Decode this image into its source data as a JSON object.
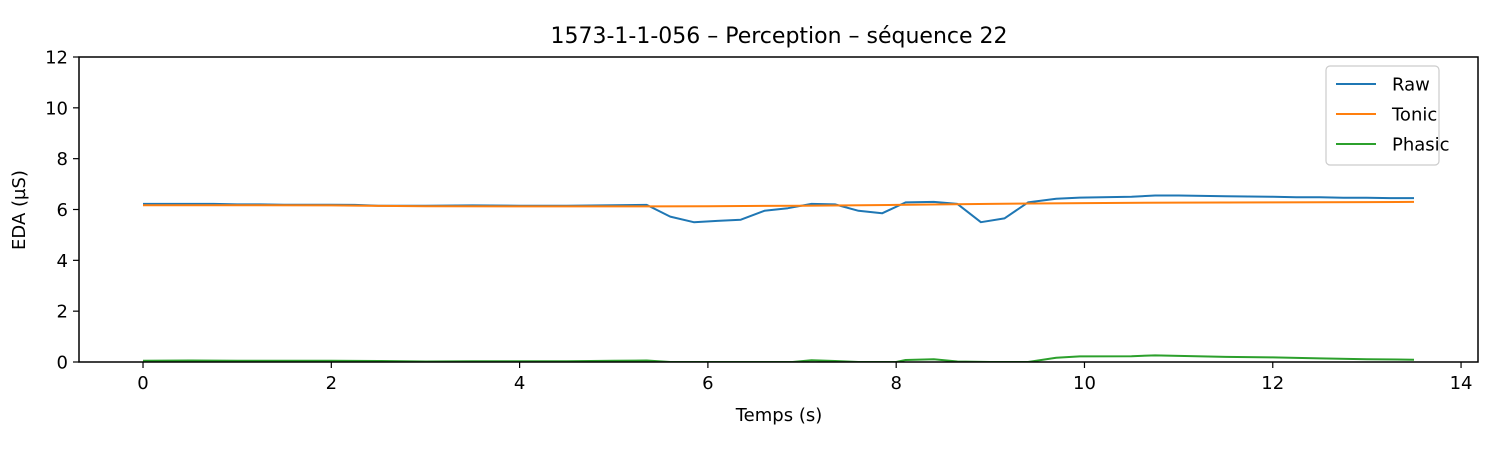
{
  "chart_data": {
    "type": "line",
    "title": "1573-1-1-056 – Perception – séquence 22",
    "xlabel": "Temps (s)",
    "ylabel": "EDA (µS)",
    "xlim": [
      -0.68,
      14.18
    ],
    "ylim": [
      0,
      12
    ],
    "xticks": [
      0,
      2,
      4,
      6,
      8,
      10,
      12,
      14
    ],
    "yticks": [
      0,
      2,
      4,
      6,
      8,
      10,
      12
    ],
    "grid": false,
    "legend_position": "top-right",
    "series": [
      {
        "name": "Raw",
        "color": "#1f77b4",
        "x": [
          0,
          0.5,
          0.75,
          1.0,
          1.25,
          1.5,
          1.75,
          2.0,
          2.25,
          2.5,
          3.0,
          3.5,
          4.0,
          4.5,
          5.0,
          5.35,
          5.6,
          5.85,
          6.1,
          6.35,
          6.6,
          6.85,
          7.1,
          7.35,
          7.6,
          7.85,
          8.1,
          8.4,
          8.65,
          8.9,
          9.15,
          9.4,
          9.7,
          9.95,
          10.5,
          10.75,
          11.0,
          11.5,
          12.0,
          12.25,
          12.5,
          12.75,
          13.0,
          13.25,
          13.5
        ],
        "y": [
          6.22,
          6.22,
          6.22,
          6.2,
          6.2,
          6.19,
          6.19,
          6.19,
          6.18,
          6.15,
          6.15,
          6.16,
          6.15,
          6.15,
          6.17,
          6.18,
          5.72,
          5.5,
          5.55,
          5.6,
          5.95,
          6.05,
          6.22,
          6.2,
          5.95,
          5.85,
          6.28,
          6.3,
          6.22,
          5.5,
          5.65,
          6.28,
          6.42,
          6.47,
          6.5,
          6.55,
          6.55,
          6.52,
          6.5,
          6.48,
          6.48,
          6.46,
          6.46,
          6.45,
          6.45
        ]
      },
      {
        "name": "Tonic",
        "color": "#ff7f0e",
        "x": [
          0,
          1,
          2,
          2.5,
          3,
          4,
          5,
          5.35,
          6,
          7,
          8,
          9,
          10,
          11,
          12,
          13,
          13.5
        ],
        "y": [
          6.17,
          6.17,
          6.16,
          6.14,
          6.13,
          6.12,
          6.12,
          6.12,
          6.13,
          6.15,
          6.18,
          6.22,
          6.25,
          6.27,
          6.28,
          6.29,
          6.3
        ]
      },
      {
        "name": "Phasic",
        "color": "#2ca02c",
        "x": [
          0,
          0.5,
          1.0,
          1.5,
          2.0,
          2.5,
          3.0,
          3.5,
          4.0,
          4.5,
          5.0,
          5.35,
          5.6,
          6.0,
          6.5,
          6.9,
          7.1,
          7.35,
          7.6,
          8.0,
          8.1,
          8.4,
          8.65,
          9.0,
          9.4,
          9.7,
          9.95,
          10.5,
          10.75,
          11.0,
          11.5,
          12.0,
          12.5,
          13.0,
          13.5
        ],
        "y": [
          0.05,
          0.06,
          0.05,
          0.05,
          0.05,
          0.04,
          0.02,
          0.03,
          0.03,
          0.03,
          0.05,
          0.06,
          0,
          0,
          0,
          0,
          0.07,
          0.04,
          0,
          0,
          0.08,
          0.11,
          0.02,
          0,
          0,
          0.17,
          0.22,
          0.23,
          0.26,
          0.24,
          0.2,
          0.18,
          0.14,
          0.11,
          0.09
        ]
      }
    ]
  }
}
